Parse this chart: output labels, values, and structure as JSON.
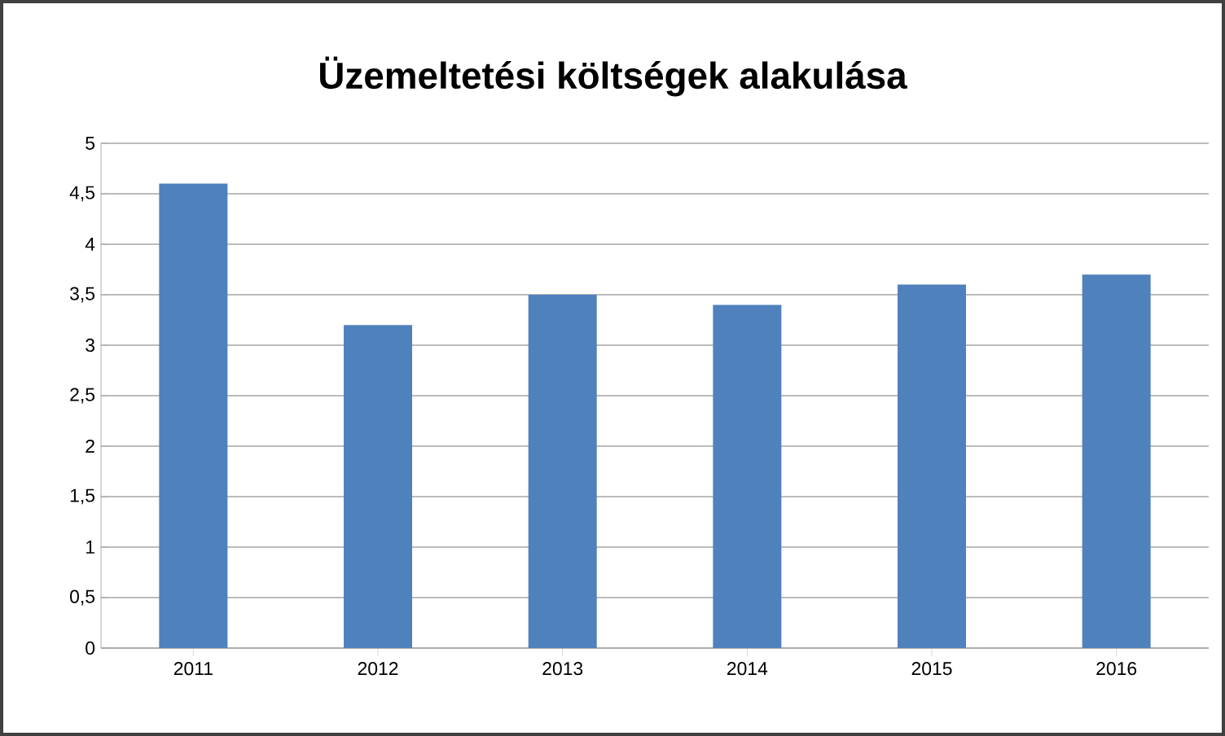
{
  "chart_data": {
    "type": "bar",
    "title": "Üzemeltetési költségek alakulása",
    "categories": [
      "2011",
      "2012",
      "2013",
      "2014",
      "2015",
      "2016"
    ],
    "values": [
      4.6,
      3.2,
      3.5,
      3.4,
      3.6,
      3.7
    ],
    "color": "#4f81bd",
    "ylim": [
      0,
      5
    ],
    "yticks": [
      0,
      {
        "value": 0.5,
        "label": "0,5"
      },
      1,
      {
        "value": 1.5,
        "label": "1,5"
      },
      2,
      {
        "value": 2.5,
        "label": "2,5"
      },
      3,
      {
        "value": 3.5,
        "label": "3,5"
      },
      4,
      {
        "value": 4.5,
        "label": "4,5"
      },
      5
    ],
    "grid": "y"
  }
}
